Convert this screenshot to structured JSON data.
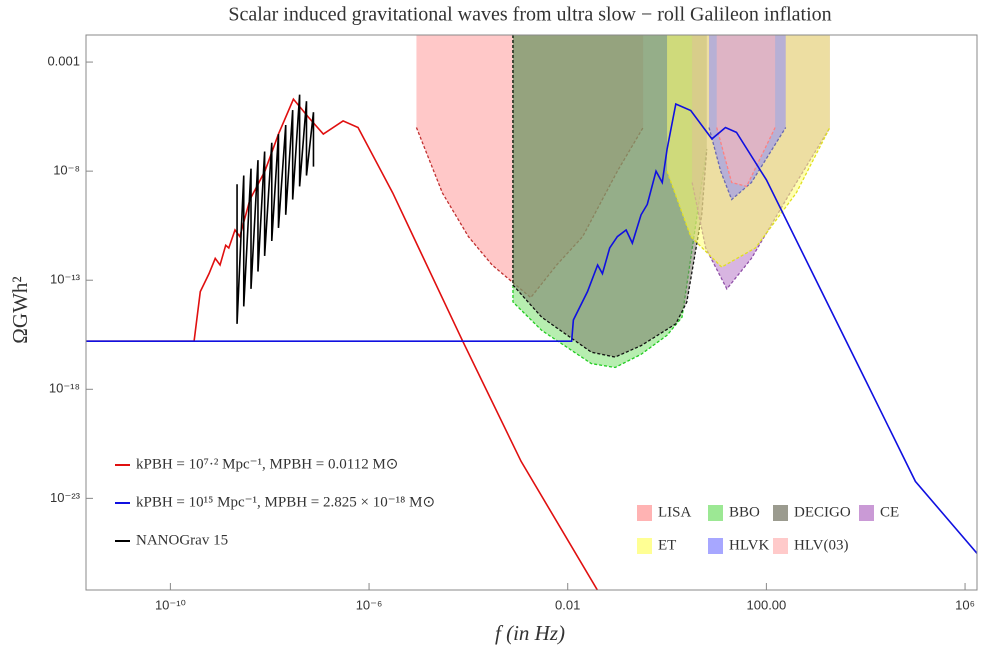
{
  "chart_data": {
    "type": "line",
    "title": "Scalar induced gravitational waves from ultra slow − roll Galileon inflation",
    "xlabel": "f (in Hz)",
    "ylabel": "ΩGWh²",
    "xscale": "log",
    "yscale": "log",
    "xlim": [
      2e-12,
      1740000.0
    ],
    "ylim": [
      6.3e-28,
      0.0174
    ],
    "xticks": [
      {
        "value": 1e-10,
        "label": "10⁻¹⁰"
      },
      {
        "value": 1e-06,
        "label": "10⁻⁶"
      },
      0.01,
      {
        "value": 100,
        "label": "100.00"
      },
      {
        "value": 1000000.0,
        "label": "10⁶"
      }
    ],
    "yticks": [
      0.001,
      {
        "value": 1e-08,
        "label": "10⁻⁸"
      },
      {
        "value": 1e-13,
        "label": "10⁻¹³"
      },
      {
        "value": 1e-18,
        "label": "10⁻¹⁸"
      },
      {
        "value": 1e-23,
        "label": "10⁻²³"
      }
    ],
    "legend": "lower left",
    "region_legend": "lower right",
    "regions": [
      {
        "name": "LISA",
        "color": "#ff9a9a",
        "stroke": "#c03030",
        "x": [
          9e-06,
          3e-05,
          0.0001,
          0.0003,
          0.0018,
          0.006,
          0.02,
          0.1,
          0.33
        ],
        "values": [
          1e-06,
          1e-09,
          1e-11,
          5e-13,
          1.6e-14,
          5e-13,
          1e-11,
          1e-08,
          1e-06
        ]
      },
      {
        "name": "BBO",
        "color": "#7be070",
        "stroke": "#22cc22",
        "x": [
          0.00079,
          0.00079,
          0.003,
          0.03,
          0.09,
          0.3,
          1,
          2,
          3,
          6.3
        ],
        "values": [
          0.0174,
          1e-14,
          5e-16,
          1.5e-17,
          1e-17,
          4e-17,
          3e-16,
          2e-15,
          1e-12,
          1e-07
        ]
      },
      {
        "name": "DECIGO",
        "color": "#7a7a6a",
        "stroke": "#111111",
        "x": [
          0.00079,
          0.00079,
          0.003,
          0.03,
          0.09,
          0.3,
          1.5,
          2.5,
          5,
          6.3
        ],
        "values": [
          0.0174,
          6e-14,
          2e-15,
          5e-17,
          3e-17,
          1e-16,
          1e-15,
          1e-14,
          1e-10,
          1e-07
        ]
      },
      {
        "name": "CE",
        "color": "#b878c8",
        "stroke": "#9050a8",
        "x": [
          3.2,
          6,
          16,
          50,
          300,
          1900
        ],
        "values": [
          3e-09,
          3e-12,
          4e-14,
          1e-12,
          1e-09,
          1e-06
        ]
      },
      {
        "name": "ET",
        "color": "#ffff70",
        "stroke": "#e0e020",
        "x": [
          1,
          3,
          12.6,
          60,
          400,
          1900
        ],
        "values": [
          1e-08,
          1e-11,
          4e-13,
          3e-12,
          1e-09,
          1e-06
        ]
      },
      {
        "name": "HLVK",
        "color": "#8a8aff",
        "stroke": "#6a6ab0",
        "x": [
          7,
          12,
          20,
          50,
          245
        ],
        "values": [
          1e-06,
          1e-08,
          5e-10,
          3e-09,
          1e-06
        ]
      },
      {
        "name": "HLV(03)",
        "color": "#ffb8b8",
        "stroke": "#ff8080",
        "x": [
          10,
          20,
          40,
          150
        ],
        "values": [
          1e-06,
          3e-09,
          2e-09,
          1e-06
        ]
      }
    ],
    "series": [
      {
        "name": "kPBH = 10⁷·² Mpc⁻¹,  MPBH = 0.0112 M⊙",
        "color": "#e01010",
        "x": [
          2e-12,
          3e-10,
          4e-10,
          6e-10,
          8e-10,
          1e-09,
          1.3e-09,
          1.5e-09,
          2e-09,
          2.5e-09,
          4e-09,
          8e-09,
          1.5e-08,
          3e-08,
          6e-08,
          1.2e-07,
          3e-07,
          6e-07,
          3e-06,
          1e-05,
          7.5e-05,
          0.00115,
          0.04
        ],
        "values": [
          1.6e-16,
          1.6e-16,
          3e-14,
          2e-13,
          1e-12,
          5e-13,
          4e-12,
          3e-12,
          2e-11,
          1e-11,
          5e-10,
          1e-08,
          5e-07,
          2e-05,
          3e-06,
          5e-07,
          2e-06,
          1e-06,
          1e-09,
          3e-12,
          1.8e-16,
          5e-22,
          6e-28
        ]
      },
      {
        "name": "kPBH = 10¹⁵ Mpc⁻¹,  MPBH = 2.825 × 10⁻¹⁸ M⊙",
        "color": "#1010e0",
        "x": [
          2e-12,
          0.012,
          0.013,
          0.025,
          0.04,
          0.05,
          0.07,
          0.1,
          0.15,
          0.2,
          0.3,
          0.4,
          0.6,
          0.8,
          1.0,
          1.5,
          3,
          8,
          15,
          25,
          100,
          1000,
          10000.0,
          100000.0,
          1740000.0
        ],
        "values": [
          1.6e-16,
          1.6e-16,
          1.5e-15,
          3e-14,
          5e-13,
          2e-13,
          3e-12,
          1e-11,
          2e-11,
          5e-12,
          1e-10,
          3e-10,
          1e-08,
          3e-09,
          1e-07,
          1.2e-05,
          6e-06,
          3e-07,
          1e-06,
          6e-07,
          4e-09,
          1e-13,
          2.5e-18,
          6e-23,
          3e-26
        ]
      },
      {
        "name": "NANOGrav 15",
        "color": "#000000",
        "x": [
          2.2e-09,
          2.2e-09,
          3e-09,
          3e-09,
          4.2e-09,
          4.2e-09,
          5.8e-09,
          5.8e-09,
          7.9e-09,
          7.9e-09,
          1.1e-08,
          1.1e-08,
          1.5e-08,
          1.5e-08,
          2.1e-08,
          2.1e-08,
          2.9e-08,
          2.9e-08,
          4e-08,
          4e-08,
          5.5e-08,
          5.5e-08,
          7.6e-08,
          7.6e-08
        ],
        "values": [
          2.5e-09,
          1e-15,
          6.3e-09,
          6.3e-15,
          1.3e-08,
          4e-14,
          3.2e-08,
          2.5e-13,
          7.9e-08,
          1.3e-12,
          2e-07,
          6.3e-12,
          5e-07,
          2.5e-11,
          1.3e-06,
          1e-10,
          6.3e-06,
          5e-10,
          3.2e-05,
          2e-09,
          1.6e-05,
          6.3e-09,
          5e-06,
          1.6e-08
        ]
      }
    ]
  }
}
